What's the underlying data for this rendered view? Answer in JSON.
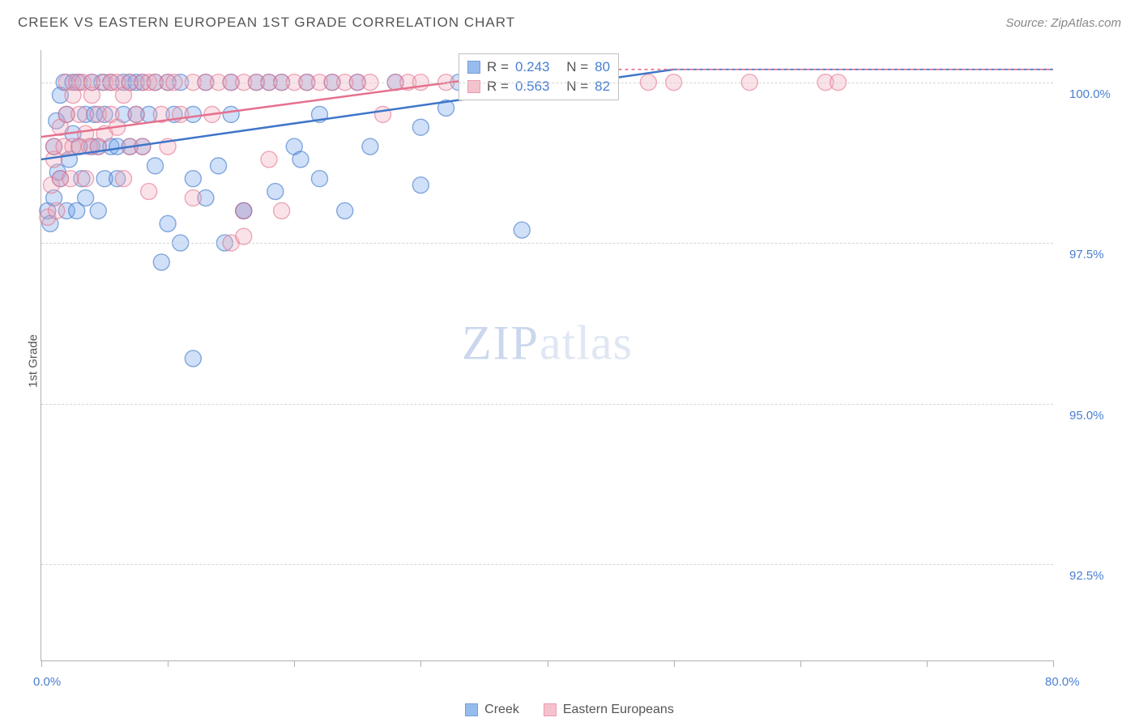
{
  "title": "CREEK VS EASTERN EUROPEAN 1ST GRADE CORRELATION CHART",
  "source": "Source: ZipAtlas.com",
  "ylabel": "1st Grade",
  "watermark": {
    "zip": "ZIP",
    "atlas": "atlas"
  },
  "chart": {
    "type": "scatter",
    "xlim": [
      0,
      80
    ],
    "ylim": [
      91.0,
      100.5
    ],
    "x_ticks": [
      0,
      10,
      20,
      30,
      40,
      50,
      60,
      70,
      80
    ],
    "x_tick_labels": {
      "0": "0.0%",
      "80": "80.0%"
    },
    "y_gridlines": [
      92.5,
      95.0,
      97.5,
      100.0
    ],
    "y_tick_labels": {
      "92.5": "92.5%",
      "95.0": "95.0%",
      "97.5": "97.5%",
      "100.0": "100.0%"
    },
    "background_color": "#ffffff",
    "grid_color": "#d5d5d5",
    "axis_color": "#b0b0b0",
    "tick_label_color": "#4a7fd1",
    "marker_radius": 10,
    "marker_stroke_width": 1.4,
    "marker_fill_opacity": 0.32,
    "line_width": 2.5,
    "dash_pattern": "4 4",
    "series": [
      {
        "name": "Creek",
        "color": "#6aa0e8",
        "stroke": "#3e75c8",
        "R": "0.243",
        "N": "80",
        "trend": {
          "x1": 0,
          "y1": 98.8,
          "x2": 50,
          "y2": 100.2
        },
        "points": [
          [
            0.5,
            98.0
          ],
          [
            0.7,
            97.8
          ],
          [
            1.0,
            99.0
          ],
          [
            1.0,
            98.2
          ],
          [
            1.2,
            99.4
          ],
          [
            1.3,
            98.6
          ],
          [
            1.5,
            99.8
          ],
          [
            1.5,
            98.5
          ],
          [
            1.8,
            100.0
          ],
          [
            2.0,
            98.0
          ],
          [
            2.0,
            99.5
          ],
          [
            2.2,
            98.8
          ],
          [
            2.5,
            99.2
          ],
          [
            2.5,
            100.0
          ],
          [
            2.8,
            98.0
          ],
          [
            3.0,
            99.0
          ],
          [
            3.0,
            100.0
          ],
          [
            3.2,
            98.5
          ],
          [
            3.5,
            99.5
          ],
          [
            3.5,
            98.2
          ],
          [
            4.0,
            100.0
          ],
          [
            4.0,
            99.0
          ],
          [
            4.2,
            99.5
          ],
          [
            4.5,
            98.0
          ],
          [
            4.5,
            99.0
          ],
          [
            4.8,
            100.0
          ],
          [
            5.0,
            99.5
          ],
          [
            5.0,
            98.5
          ],
          [
            5.5,
            99.0
          ],
          [
            5.5,
            100.0
          ],
          [
            6.0,
            99.0
          ],
          [
            6.0,
            98.5
          ],
          [
            6.5,
            99.5
          ],
          [
            6.5,
            100.0
          ],
          [
            7.0,
            99.0
          ],
          [
            7.0,
            100.0
          ],
          [
            7.5,
            99.5
          ],
          [
            7.5,
            100.0
          ],
          [
            8.0,
            99.0
          ],
          [
            8.0,
            100.0
          ],
          [
            8.5,
            99.5
          ],
          [
            9.0,
            100.0
          ],
          [
            9.0,
            98.7
          ],
          [
            10.0,
            100.0
          ],
          [
            10.0,
            97.8
          ],
          [
            10.5,
            99.5
          ],
          [
            11.0,
            97.5
          ],
          [
            11.0,
            100.0
          ],
          [
            12.0,
            98.5
          ],
          [
            12.0,
            99.5
          ],
          [
            13.0,
            100.0
          ],
          [
            13.0,
            98.2
          ],
          [
            14.0,
            98.7
          ],
          [
            14.5,
            97.5
          ],
          [
            15.0,
            99.5
          ],
          [
            15.0,
            100.0
          ],
          [
            16.0,
            98.0
          ],
          [
            16.0,
            98.0
          ],
          [
            17.0,
            100.0
          ],
          [
            18.0,
            100.0
          ],
          [
            18.5,
            98.3
          ],
          [
            19.0,
            100.0
          ],
          [
            20.0,
            99.0
          ],
          [
            20.5,
            98.8
          ],
          [
            21.0,
            100.0
          ],
          [
            22.0,
            98.5
          ],
          [
            22.0,
            99.5
          ],
          [
            23.0,
            100.0
          ],
          [
            24.0,
            98.0
          ],
          [
            25.0,
            100.0
          ],
          [
            26.0,
            99.0
          ],
          [
            28.0,
            100.0
          ],
          [
            30.0,
            98.4
          ],
          [
            30.0,
            99.3
          ],
          [
            32.0,
            99.6
          ],
          [
            33.0,
            100.0
          ],
          [
            35.0,
            100.0
          ],
          [
            38.0,
            97.7
          ],
          [
            9.5,
            97.2
          ],
          [
            12.0,
            95.7
          ]
        ]
      },
      {
        "name": "Eastern Europeans",
        "color": "#f0a9b8",
        "stroke": "#e5718e",
        "R": "0.563",
        "N": "82",
        "trend": {
          "x1": 0,
          "y1": 99.15,
          "x2": 40,
          "y2": 100.2
        },
        "points": [
          [
            0.5,
            97.9
          ],
          [
            0.8,
            98.4
          ],
          [
            1.0,
            98.8
          ],
          [
            1.0,
            99.0
          ],
          [
            1.2,
            98.0
          ],
          [
            1.5,
            99.3
          ],
          [
            1.5,
            98.5
          ],
          [
            1.8,
            99.0
          ],
          [
            2.0,
            99.5
          ],
          [
            2.0,
            100.0
          ],
          [
            2.3,
            98.5
          ],
          [
            2.5,
            99.0
          ],
          [
            2.5,
            99.8
          ],
          [
            2.8,
            100.0
          ],
          [
            3.0,
            99.0
          ],
          [
            3.0,
            99.5
          ],
          [
            3.3,
            100.0
          ],
          [
            3.5,
            99.2
          ],
          [
            3.5,
            98.5
          ],
          [
            3.8,
            99.0
          ],
          [
            4.0,
            99.8
          ],
          [
            4.0,
            100.0
          ],
          [
            4.5,
            99.0
          ],
          [
            4.5,
            99.5
          ],
          [
            5.0,
            100.0
          ],
          [
            5.0,
            99.2
          ],
          [
            5.5,
            99.5
          ],
          [
            5.5,
            100.0
          ],
          [
            6.0,
            99.3
          ],
          [
            6.0,
            100.0
          ],
          [
            6.5,
            99.8
          ],
          [
            6.5,
            98.5
          ],
          [
            7.0,
            99.0
          ],
          [
            7.0,
            100.0
          ],
          [
            7.5,
            99.5
          ],
          [
            8.0,
            100.0
          ],
          [
            8.0,
            99.0
          ],
          [
            8.5,
            100.0
          ],
          [
            8.5,
            98.3
          ],
          [
            9.0,
            100.0
          ],
          [
            9.5,
            99.5
          ],
          [
            10.0,
            100.0
          ],
          [
            10.0,
            99.0
          ],
          [
            10.5,
            100.0
          ],
          [
            11.0,
            99.5
          ],
          [
            12.0,
            100.0
          ],
          [
            12.0,
            98.2
          ],
          [
            13.0,
            100.0
          ],
          [
            13.5,
            99.5
          ],
          [
            14.0,
            100.0
          ],
          [
            15.0,
            100.0
          ],
          [
            15.0,
            97.5
          ],
          [
            16.0,
            98.0
          ],
          [
            16.0,
            100.0
          ],
          [
            17.0,
            100.0
          ],
          [
            18.0,
            98.8
          ],
          [
            18.0,
            100.0
          ],
          [
            19.0,
            98.0
          ],
          [
            19.0,
            100.0
          ],
          [
            20.0,
            100.0
          ],
          [
            21.0,
            100.0
          ],
          [
            22.0,
            100.0
          ],
          [
            23.0,
            100.0
          ],
          [
            24.0,
            100.0
          ],
          [
            25.0,
            100.0
          ],
          [
            26.0,
            100.0
          ],
          [
            27.0,
            99.5
          ],
          [
            28.0,
            100.0
          ],
          [
            29.0,
            100.0
          ],
          [
            30.0,
            100.0
          ],
          [
            32.0,
            100.0
          ],
          [
            34.0,
            100.0
          ],
          [
            35.0,
            100.0
          ],
          [
            38.0,
            100.0
          ],
          [
            42.0,
            100.0
          ],
          [
            45.0,
            100.0
          ],
          [
            48.0,
            100.0
          ],
          [
            50.0,
            100.0
          ],
          [
            56.0,
            100.0
          ],
          [
            62.0,
            100.0
          ],
          [
            63.0,
            100.0
          ],
          [
            16.0,
            97.6
          ]
        ]
      }
    ]
  },
  "legend": {
    "series1": "Creek",
    "series2": "Eastern Europeans"
  },
  "stats_box": {
    "r_label": "R =",
    "n_label": "N ="
  }
}
